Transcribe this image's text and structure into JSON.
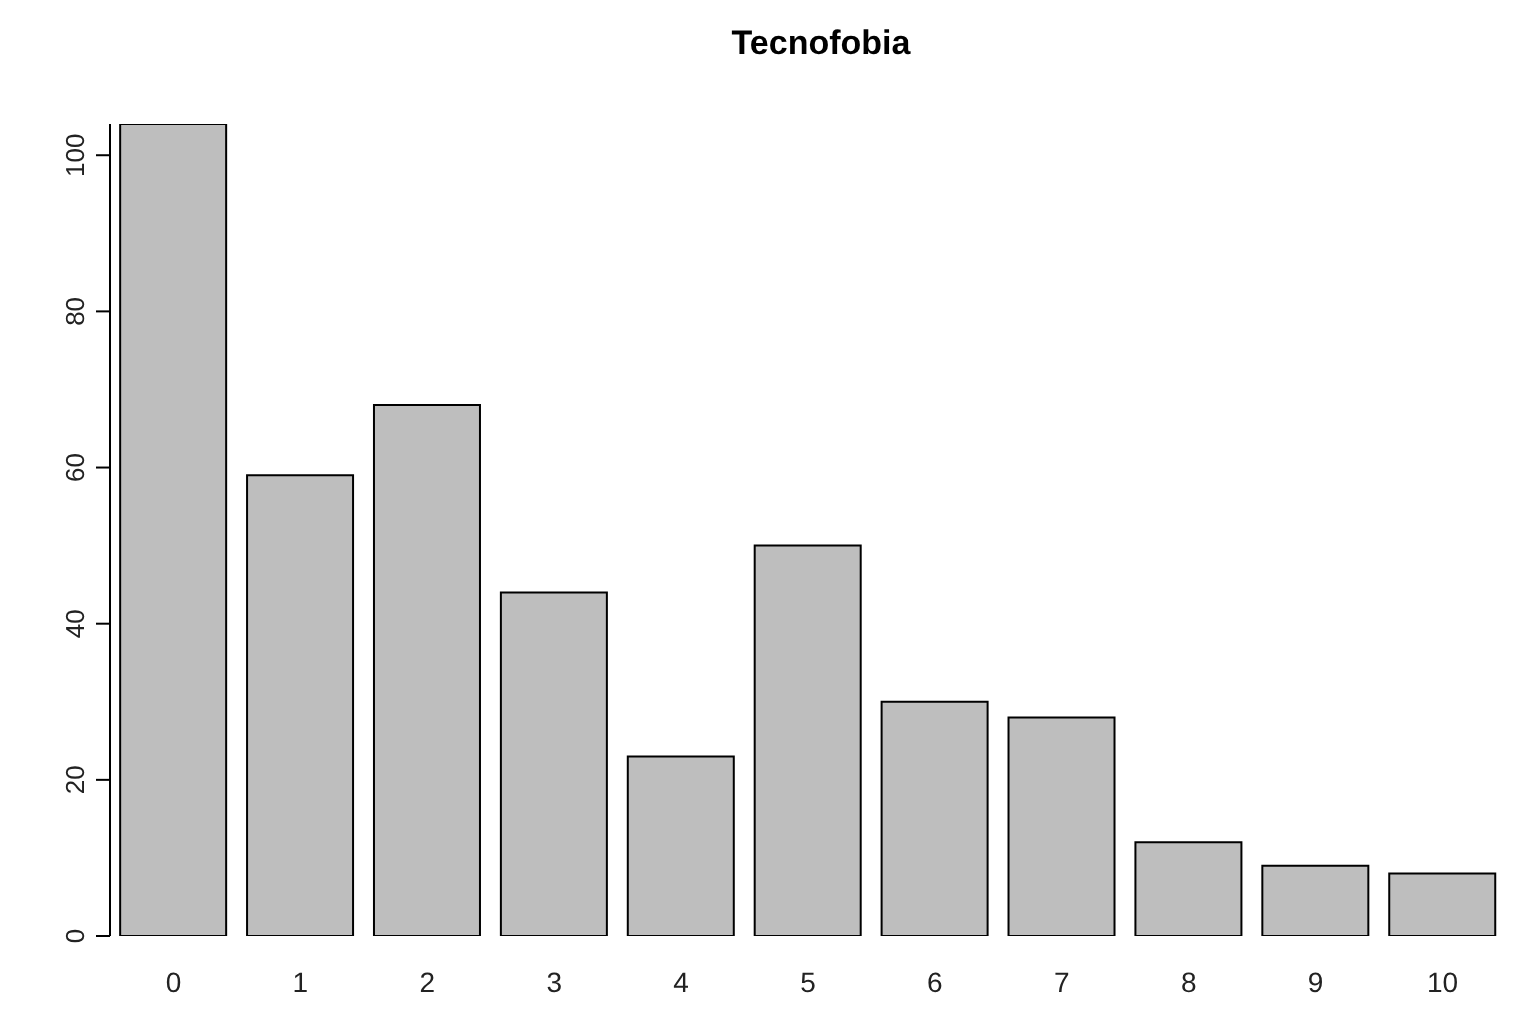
{
  "chart_data": {
    "type": "bar",
    "title": "Tecnofobia",
    "categories": [
      "0",
      "1",
      "2",
      "3",
      "4",
      "5",
      "6",
      "7",
      "8",
      "9",
      "10"
    ],
    "values": [
      104,
      59,
      68,
      44,
      23,
      50,
      30,
      28,
      12,
      9,
      8
    ],
    "color": "#bebebe",
    "ylim": [
      0,
      104
    ],
    "yticks": [
      0,
      20,
      40,
      60,
      80,
      100
    ],
    "grid": false
  }
}
